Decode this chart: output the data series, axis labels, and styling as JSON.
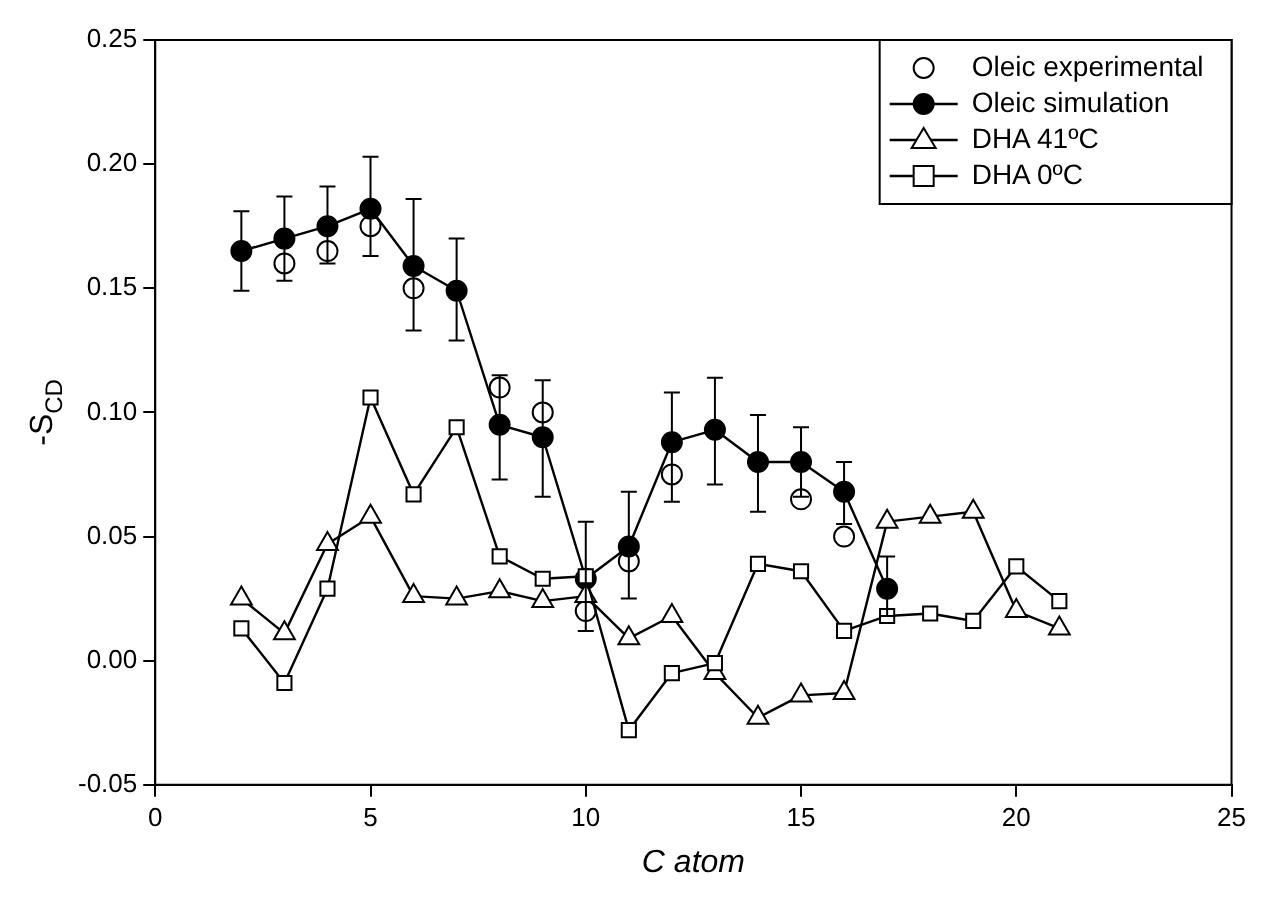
{
  "chart_data": {
    "type": "line",
    "xlabel": "C atom",
    "ylabel": "-S$_{CD}$",
    "x": [
      2,
      3,
      4,
      5,
      6,
      7,
      8,
      9,
      10,
      11,
      12,
      13,
      14,
      15,
      16,
      17,
      18,
      19,
      20,
      21
    ],
    "xlim": [
      0,
      25
    ],
    "xticks": [
      0,
      5,
      10,
      15,
      20,
      25
    ],
    "ylim": [
      -0.05,
      0.25
    ],
    "yticks": [
      -0.05,
      {
        "value": 0,
        "label": "0.00"
      },
      0.05,
      {
        "value": 0.1,
        "label": "0.10"
      },
      0.15,
      {
        "value": 0.2,
        "label": "0.20"
      },
      0.25
    ],
    "grid": false,
    "legend": "top right",
    "series": [
      {
        "name": "Oleic experimental",
        "type": "scatter",
        "marker": "circle",
        "color": "#ffffff",
        "values": [
          null,
          0.16,
          0.165,
          0.175,
          0.15,
          null,
          0.11,
          0.1,
          0.02,
          0.04,
          0.075,
          null,
          null,
          0.065,
          0.05,
          null,
          null,
          null,
          null,
          null
        ]
      },
      {
        "name": "Oleic simulation",
        "type": "line",
        "marker": "circle",
        "color": "#000000",
        "values": [
          0.165,
          0.17,
          0.175,
          0.182,
          0.159,
          0.149,
          0.095,
          0.09,
          0.033,
          0.046,
          0.088,
          0.093,
          0.08,
          0.08,
          0.068,
          0.029,
          null,
          null,
          null,
          null
        ],
        "errors": [
          [
            0.149,
            0.181
          ],
          [
            0.153,
            0.187
          ],
          [
            0.16,
            0.191
          ],
          [
            0.163,
            0.203
          ],
          [
            0.133,
            0.186
          ],
          [
            0.129,
            0.17
          ],
          [
            0.073,
            0.115
          ],
          [
            0.066,
            0.113
          ],
          [
            0.012,
            0.056
          ],
          [
            0.025,
            0.068
          ],
          [
            0.064,
            0.108
          ],
          [
            0.071,
            0.114
          ],
          [
            0.06,
            0.099
          ],
          [
            0.066,
            0.094
          ],
          [
            0.055,
            0.08
          ],
          [
            0.018,
            0.042
          ],
          null,
          null,
          null,
          null
        ]
      },
      {
        "name": "DHA 41ºC",
        "type": "line",
        "marker": "triangle",
        "color": "#ffffff",
        "values": [
          0.025,
          0.011,
          0.047,
          0.058,
          0.026,
          0.025,
          0.028,
          0.024,
          0.026,
          0.009,
          0.018,
          -0.005,
          -0.023,
          -0.014,
          -0.013,
          0.056,
          0.058,
          0.06,
          0.02,
          0.013
        ]
      },
      {
        "name": "DHA 0ºC",
        "type": "line",
        "marker": "square",
        "color": "#ffffff",
        "values": [
          0.013,
          -0.009,
          0.029,
          0.106,
          0.067,
          0.094,
          0.042,
          0.033,
          0.034,
          -0.028,
          -0.005,
          -0.001,
          0.039,
          0.036,
          0.012,
          0.018,
          0.019,
          0.016,
          0.038,
          0.024
        ]
      }
    ]
  }
}
